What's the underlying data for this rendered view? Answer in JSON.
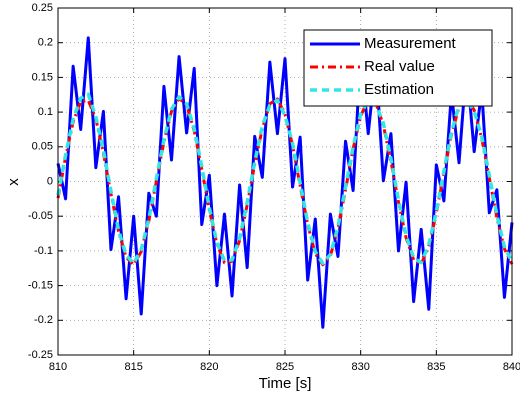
{
  "chart_data": {
    "type": "line",
    "xlabel": "Time [s]",
    "ylabel": "x",
    "x": [
      810,
      810.5,
      811,
      811.5,
      812,
      812.5,
      813,
      813.5,
      814,
      814.5,
      815,
      815.5,
      816,
      816.5,
      817,
      817.5,
      818,
      818.5,
      819,
      819.5,
      820,
      820.5,
      821,
      821.5,
      822,
      822.5,
      823,
      823.5,
      824,
      824.5,
      825,
      825.5,
      826,
      826.5,
      827,
      827.5,
      828,
      828.5,
      829,
      829.5,
      830,
      830.5,
      831,
      831.5,
      832,
      832.5,
      833,
      833.5,
      834,
      834.5,
      835,
      835.5,
      836,
      836.5,
      837,
      837.5,
      838,
      838.5,
      839,
      839.5,
      840
    ],
    "series": [
      {
        "name": "Measurement",
        "color": "#0000ff",
        "style": "solid",
        "width": 3,
        "values": [
          0.026,
          -0.025,
          0.166,
          0.075,
          0.207,
          0.02,
          0.101,
          -0.098,
          -0.022,
          -0.169,
          -0.05,
          -0.191,
          -0.017,
          -0.05,
          0.137,
          0.031,
          0.18,
          0.07,
          0.163,
          -0.062,
          0.009,
          -0.15,
          -0.047,
          -0.165,
          -0.005,
          -0.124,
          0.065,
          0.006,
          0.172,
          0.069,
          0.177,
          -0.008,
          0.064,
          -0.142,
          -0.054,
          -0.21,
          -0.047,
          -0.108,
          0.058,
          -0.013,
          0.184,
          0.069,
          0.173,
          0.001,
          0.069,
          -0.1,
          -0.001,
          -0.173,
          -0.069,
          -0.184,
          0.024,
          -0.028,
          0.128,
          0.027,
          0.17,
          0.043,
          0.132,
          -0.045,
          -0.012,
          -0.167,
          -0.059
        ]
      },
      {
        "name": "Real value",
        "color": "#ff0000",
        "style": "dashdot",
        "width": 3,
        "values": [
          -0.024,
          0.035,
          0.086,
          0.115,
          0.117,
          0.09,
          0.041,
          -0.018,
          -0.072,
          -0.109,
          -0.12,
          -0.101,
          -0.057,
          0.0,
          0.057,
          0.101,
          0.12,
          0.11,
          0.073,
          0.018,
          -0.041,
          -0.09,
          -0.117,
          -0.115,
          -0.085,
          -0.034,
          0.025,
          0.076,
          0.112,
          0.119,
          0.097,
          0.052,
          -0.006,
          -0.062,
          -0.104,
          -0.12,
          -0.107,
          -0.068,
          -0.012,
          0.047,
          0.094,
          0.119,
          0.113,
          0.081,
          0.029,
          -0.03,
          -0.081,
          -0.113,
          -0.119,
          -0.094,
          -0.046,
          0.012,
          0.068,
          0.107,
          0.12,
          0.103,
          0.062,
          0.005,
          -0.052,
          -0.097,
          -0.119
        ]
      },
      {
        "name": "Estimation",
        "color": "#33e6e6",
        "style": "dashed",
        "width": 3.5,
        "values": [
          -0.02,
          0.038,
          0.09,
          0.12,
          0.126,
          0.093,
          0.045,
          -0.014,
          -0.07,
          -0.106,
          -0.118,
          -0.098,
          -0.054,
          0.004,
          0.06,
          0.104,
          0.122,
          0.112,
          0.076,
          0.022,
          -0.038,
          -0.088,
          -0.114,
          -0.113,
          -0.082,
          -0.03,
          0.028,
          0.08,
          0.11,
          0.117,
          0.095,
          0.055,
          -0.002,
          -0.059,
          -0.101,
          -0.118,
          -0.105,
          -0.065,
          -0.008,
          0.05,
          0.097,
          0.117,
          0.111,
          0.084,
          0.033,
          -0.027,
          -0.078,
          -0.11,
          -0.117,
          -0.091,
          -0.043,
          0.015,
          0.071,
          0.11,
          0.118,
          0.101,
          0.065,
          0.009,
          -0.048,
          -0.094,
          -0.116
        ]
      }
    ],
    "xlim": [
      810,
      840
    ],
    "xticks": [
      810,
      815,
      820,
      825,
      830,
      835,
      840
    ],
    "ylim": [
      -0.25,
      0.25
    ],
    "yticks": [
      -0.25,
      -0.2,
      -0.15,
      -0.1,
      -0.05,
      0,
      0.05,
      0.1,
      0.15,
      0.2,
      0.25
    ],
    "grid": true,
    "legend": "top-right"
  }
}
